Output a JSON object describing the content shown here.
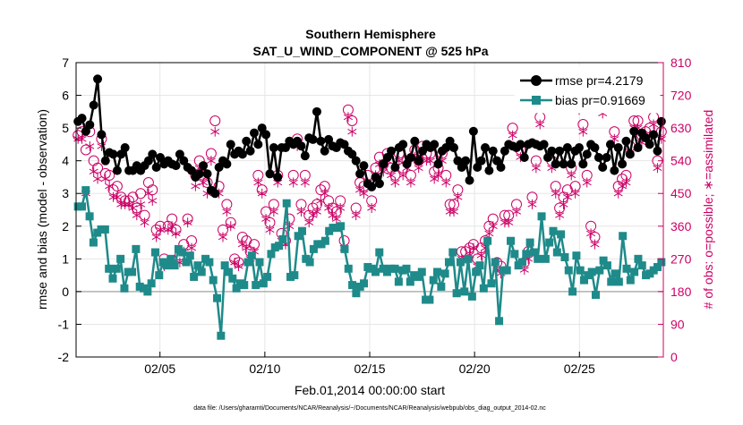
{
  "chart_data": {
    "type": "line",
    "title": "Southern Hemisphere",
    "subtitle": "SAT_U_WIND_COMPONENT @ 525 hPa",
    "xlabel": "Feb.01,2014 00:00:00 start",
    "ylabel_left": "rmse and bias (model - observation)",
    "ylabel_right": "# of obs: o=possible; ∗=assimilated",
    "footnote": "data file: /Users/gharamti/Documents/NCAR/Reanalysis/~/Documents/NCAR/Reanalysis/webpub/obs_diag_output_2014-02.nc",
    "x_start_day": 1,
    "x_ticks": [
      {
        "day": 5,
        "label": "02/05"
      },
      {
        "day": 10,
        "label": "02/10"
      },
      {
        "day": 15,
        "label": "02/15"
      },
      {
        "day": 20,
        "label": "02/20"
      },
      {
        "day": 25,
        "label": "02/25"
      }
    ],
    "xlim_days": [
      1.0,
      29.0
    ],
    "ylim_left": [
      -2,
      7
    ],
    "yticks_left": [
      -2,
      -1,
      0,
      1,
      2,
      3,
      4,
      5,
      6,
      7
    ],
    "ylim_right": [
      0,
      810
    ],
    "yticks_right": [
      0,
      90,
      180,
      270,
      360,
      450,
      540,
      630,
      720,
      810
    ],
    "grid": true,
    "legend_position": "top-right",
    "colors": {
      "rmse": "#000000",
      "bias": "#1f8a8a",
      "obs": "#cc0066",
      "zero_line": "#b0b0b0"
    },
    "series": [
      {
        "name": "rmse pr=4.2179",
        "axis": "left",
        "marker": "circle",
        "values": [
          5.2,
          5.3,
          4.9,
          5.1,
          5.7,
          6.5,
          4.8,
          4.0,
          4.25,
          4.2,
          3.7,
          4.2,
          4.4,
          3.7,
          3.7,
          3.85,
          3.7,
          3.85,
          4.0,
          4.2,
          3.8,
          4.1,
          3.9,
          4.0,
          3.9,
          3.85,
          4.2,
          4.0,
          3.8,
          3.7,
          3.5,
          3.6,
          3.85,
          3.6,
          3.1,
          3.0,
          3.8,
          4.0,
          3.9,
          4.5,
          4.2,
          4.3,
          4.2,
          4.6,
          4.3,
          4.85,
          4.5,
          5.0,
          4.8,
          3.6,
          4.4,
          3.5,
          4.4,
          4.4,
          4.6,
          4.5,
          4.6,
          4.45,
          4.15,
          4.7,
          4.65,
          5.5,
          4.6,
          4.3,
          4.65,
          4.45,
          4.4,
          4.55,
          4.5,
          4.3,
          4.2,
          4.0,
          3.6,
          3.85,
          3.3,
          3.2,
          3.5,
          3.3,
          3.9,
          4.1,
          4.3,
          3.8,
          4.4,
          4.5,
          3.9,
          4.1,
          4.6,
          4.0,
          4.3,
          4.5,
          4.4,
          4.5,
          3.9,
          4.3,
          4.4,
          4.6,
          4.4,
          4.0,
          3.8,
          4.0,
          3.4,
          4.9,
          3.8,
          4.0,
          4.4,
          3.7,
          4.3,
          4.0,
          3.8,
          4.3,
          4.5,
          4.45,
          4.4,
          4.5,
          4.1,
          4.5,
          4.55,
          4.5,
          4.45,
          4.5,
          4.1,
          4.3,
          3.9,
          4.3,
          3.9,
          4.4,
          3.9,
          4.3,
          4.4,
          3.9,
          4.2,
          4.5,
          4.4,
          4.1,
          3.8,
          4.1,
          4.5,
          3.7,
          4.4,
          3.9,
          4.6,
          4.2,
          4.9,
          4.4,
          4.85,
          4.7,
          4.5,
          4.8,
          4.3,
          5.2
        ]
      },
      {
        "name": "bias pr=0.91669",
        "axis": "left",
        "marker": "square",
        "values": [
          2.6,
          2.6,
          3.1,
          2.3,
          1.5,
          1.8,
          1.9,
          1.9,
          0.7,
          0.4,
          0.7,
          1.0,
          0.1,
          0.6,
          0.6,
          1.3,
          0.15,
          0.1,
          0.0,
          0.25,
          1.2,
          0.5,
          0.9,
          0.8,
          1.0,
          0.8,
          1.3,
          1.2,
          0.9,
          1.1,
          0.45,
          0.8,
          0.6,
          1.0,
          0.9,
          0.35,
          -0.2,
          -1.35,
          0.8,
          0.6,
          0.4,
          0.1,
          0.25,
          0.2,
          0.9,
          1.1,
          0.2,
          0.9,
          0.25,
          0.45,
          1.15,
          1.35,
          1.4,
          1.6,
          2.7,
          0.45,
          0.5,
          1.7,
          1.85,
          1.0,
          0.9,
          1.3,
          1.45,
          1.45,
          1.55,
          1.85,
          1.95,
          1.95,
          2.0,
          1.3,
          0.7,
          0.2,
          -0.05,
          0.15,
          0.25,
          0.75,
          0.7,
          0.6,
          1.2,
          0.7,
          0.6,
          0.7,
          0.7,
          0.3,
          0.65,
          0.7,
          0.3,
          0.5,
          0.45,
          0.6,
          -0.25,
          -0.25,
          0.35,
          0.6,
          0.15,
          0.55,
          0.9,
          1.2,
          -0.05,
          0.9,
          0.0,
          1.0,
          -0.15,
          0.6,
          0.8,
          0.1,
          1.55,
          0.25,
          0.9,
          -0.9,
          0.65,
          0.65,
          1.55,
          1.15,
          0.8,
          0.9,
          1.15,
          1.5,
          1.2,
          1.0,
          2.3,
          1.0,
          1.5,
          1.85,
          1.2,
          1.75,
          1.05,
          0.65,
          0.0,
          1.1,
          0.65,
          0.35,
          0.5,
          0.6,
          -0.1,
          0.65,
          0.95,
          0.8,
          0.3,
          0.55,
          0.3,
          1.7,
          0.7,
          0.35,
          0.6,
          1.0,
          0.8,
          0.5,
          0.55,
          0.65,
          0.75,
          0.9
        ]
      },
      {
        "name": "possible",
        "axis": "right",
        "marker": "circle-open",
        "values": [
          610,
          620,
          570,
          620,
          540,
          520,
          600,
          505,
          500,
          460,
          470,
          440,
          430,
          430,
          440,
          410,
          450,
          390,
          480,
          460,
          350,
          360,
          270,
          360,
          380,
          350,
          280,
          310,
          380,
          320,
          500,
          540,
          500,
          480,
          560,
          650,
          470,
          350,
          420,
          370,
          270,
          260,
          330,
          320,
          290,
          310,
          500,
          460,
          400,
          370,
          420,
          500,
          340,
          320,
          380,
          500,
          600,
          420,
          500,
          390,
          410,
          420,
          460,
          470,
          430,
          410,
          400,
          430,
          320,
          680,
          650,
          410,
          480,
          470,
          500,
          430,
          520,
          550,
          530,
          560,
          520,
          500,
          560,
          520,
          540,
          500,
          570,
          540,
          580,
          560,
          560,
          510,
          520,
          560,
          500,
          420,
          420,
          460,
          290,
          290,
          300,
          310,
          270,
          300,
          320,
          360,
          380,
          260,
          250,
          390,
          390,
          630,
          420,
          570,
          260,
          290,
          440,
          540,
          660,
          760,
          740,
          540,
          470,
          410,
          440,
          460,
          520,
          470,
          700,
          640,
          500,
          360,
          330,
          720,
          690,
          740,
          780,
          620,
          470,
          490,
          500,
          580,
          650,
          650,
          610,
          620,
          630,
          660,
          540,
          620
        ]
      },
      {
        "name": "assimilated",
        "axis": "right",
        "marker": "asterisk",
        "values": [
          600,
          600,
          450,
          580,
          510,
          490,
          580,
          490,
          470,
          440,
          440,
          420,
          420,
          420,
          410,
          390,
          420,
          370,
          450,
          430,
          330,
          350,
          250,
          350,
          360,
          340,
          260,
          290,
          370,
          300,
          470,
          520,
          480,
          450,
          540,
          620,
          450,
          330,
          400,
          360,
          260,
          250,
          310,
          300,
          270,
          290,
          480,
          450,
          380,
          350,
          400,
          480,
          320,
          310,
          360,
          480,
          580,
          400,
          480,
          370,
          390,
          400,
          430,
          450,
          410,
          390,
          380,
          410,
          300,
          660,
          620,
          390,
          460,
          450,
          480,
          410,
          500,
          530,
          510,
          540,
          500,
          480,
          540,
          500,
          520,
          480,
          550,
          520,
          560,
          540,
          540,
          490,
          500,
          540,
          480,
          400,
          400,
          440,
          270,
          270,
          280,
          300,
          250,
          280,
          300,
          340,
          360,
          240,
          230,
          370,
          370,
          610,
          400,
          550,
          240,
          270,
          420,
          520,
          640,
          730,
          720,
          520,
          450,
          390,
          420,
          440,
          500,
          450,
          680,
          620,
          480,
          340,
          310,
          700,
          670,
          720,
          760,
          600,
          450,
          470,
          480,
          560,
          630,
          630,
          590,
          600,
          610,
          640,
          520,
          600
        ]
      }
    ]
  }
}
